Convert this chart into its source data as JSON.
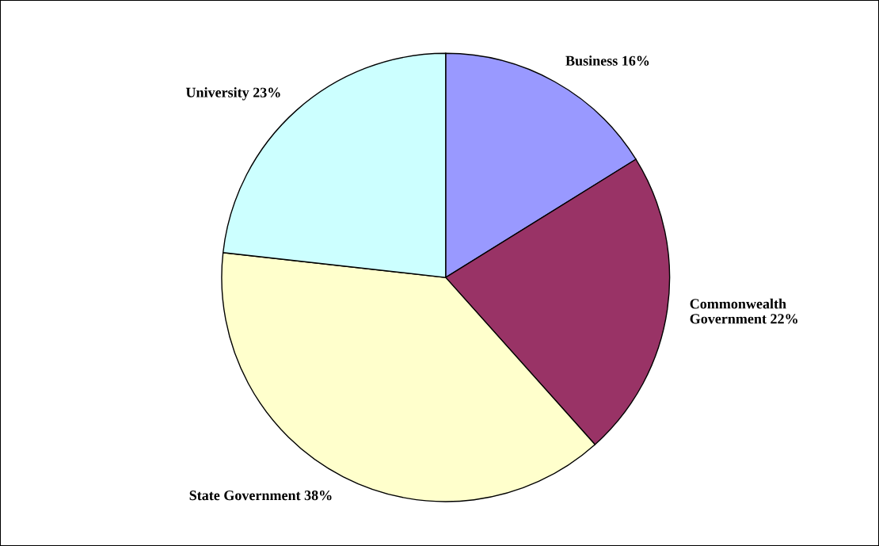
{
  "chart_data": {
    "type": "pie",
    "categories": [
      "Business",
      "Commonwealth\nGovernment",
      "State Government",
      "University"
    ],
    "values": [
      16,
      22,
      38,
      23
    ],
    "colors": [
      "#9999ff",
      "#993366",
      "#ffffcc",
      "#ccffff"
    ],
    "value_labels": [
      "16%",
      "22%",
      "38%",
      "23%"
    ]
  }
}
